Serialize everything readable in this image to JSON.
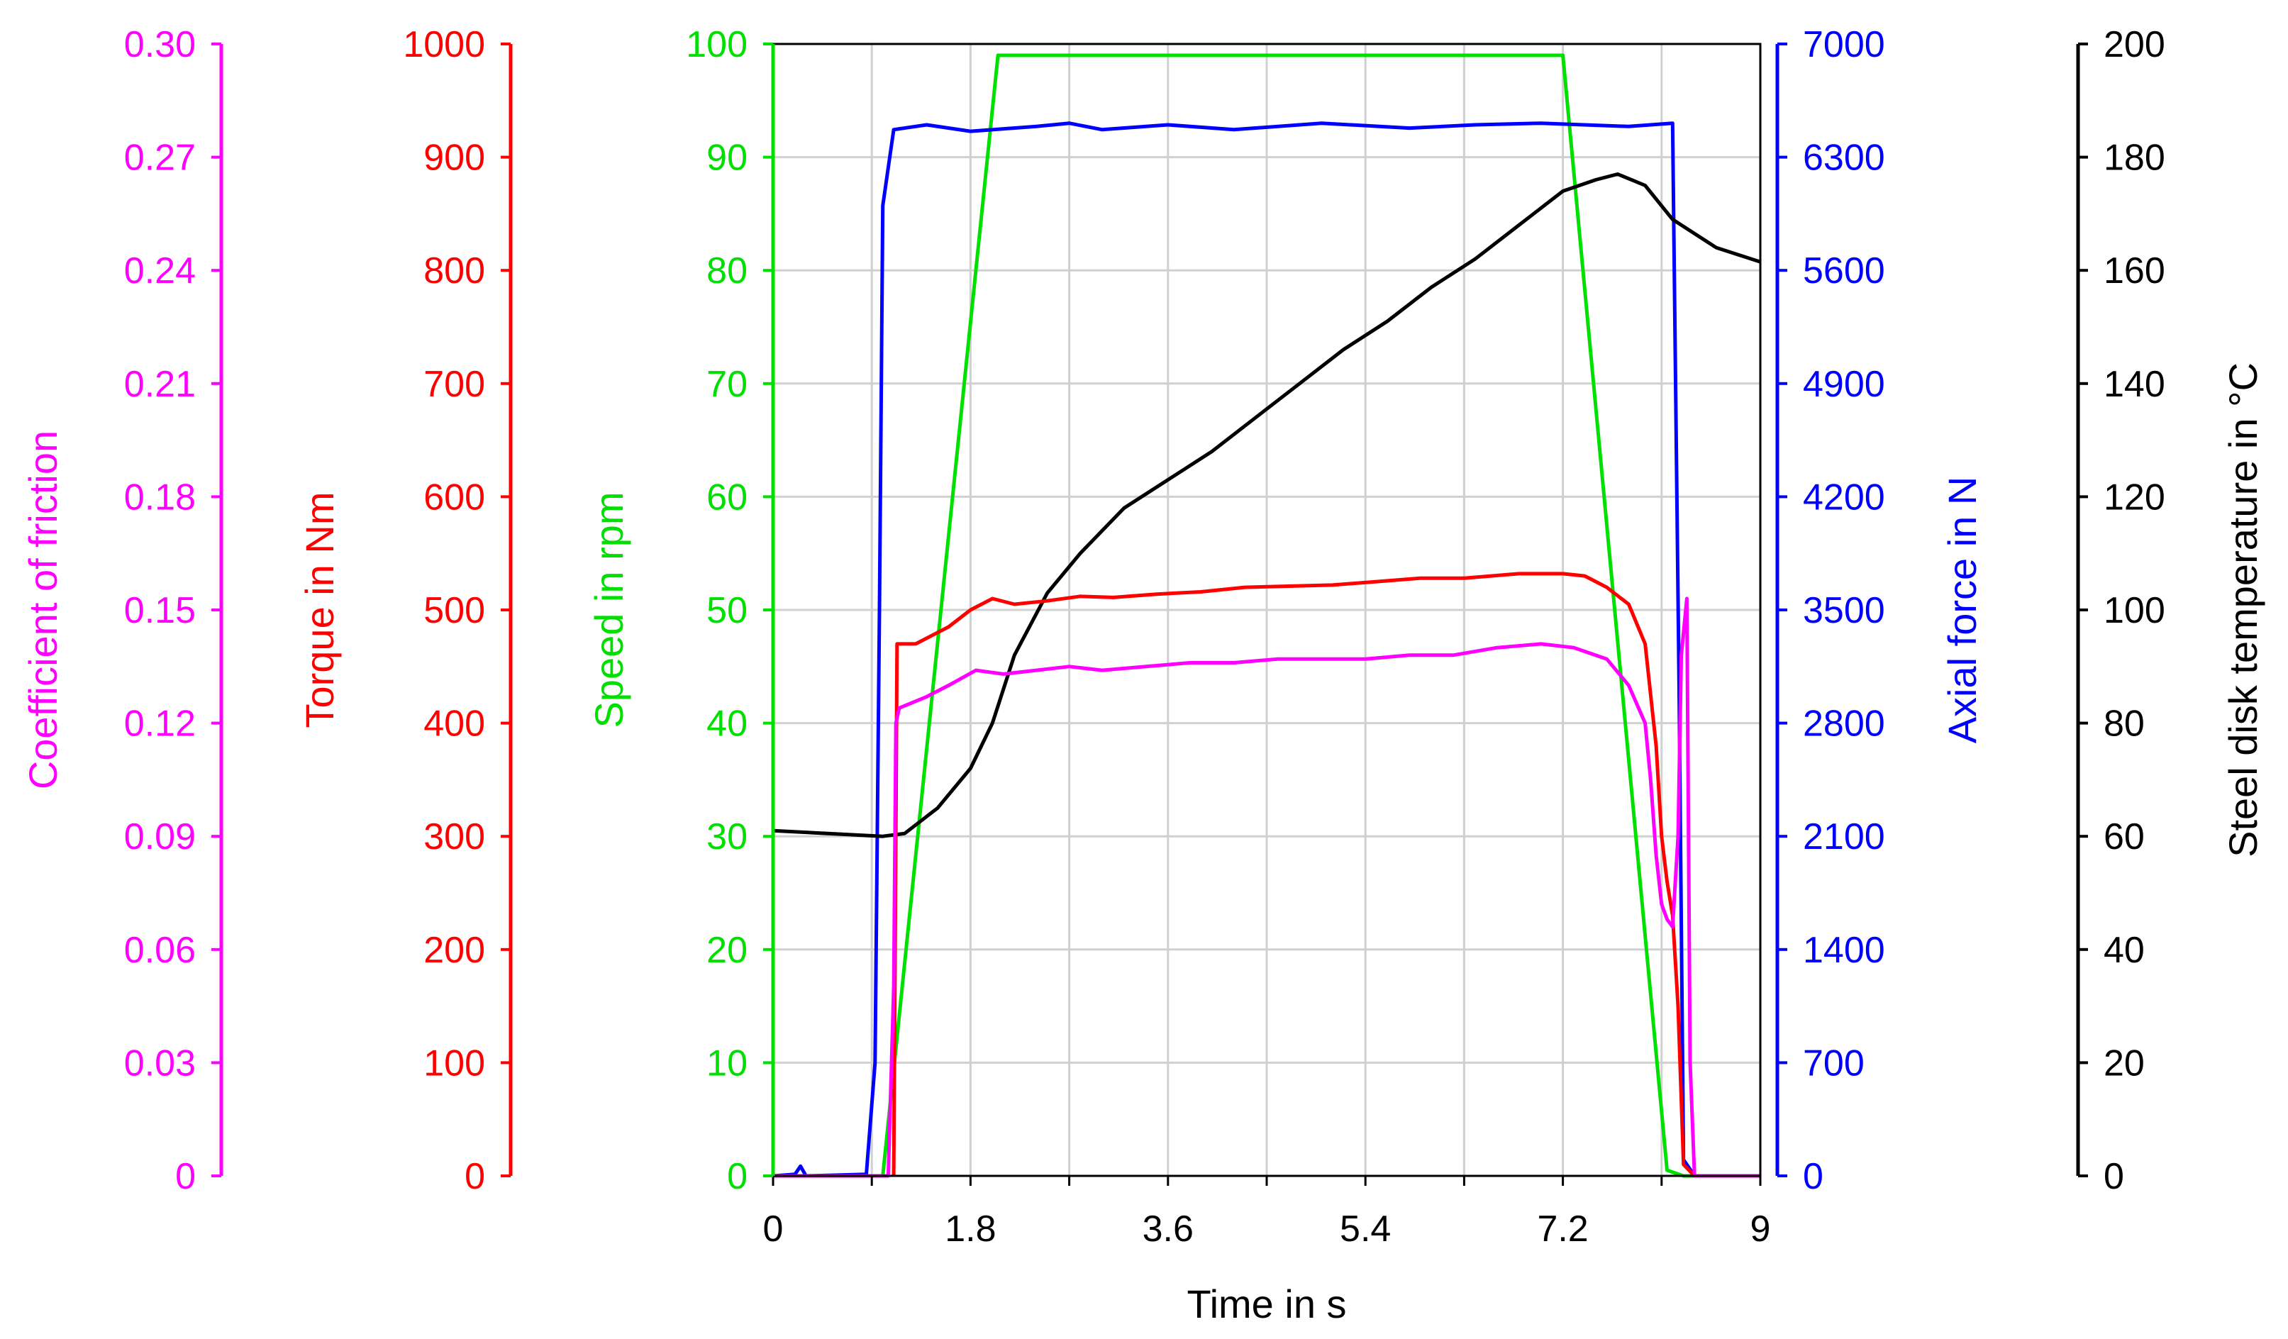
{
  "chart_data": {
    "type": "line",
    "xlabel": "Time in s",
    "xlim": [
      0,
      9
    ],
    "x_ticks": [
      "0",
      "1.8",
      "3.6",
      "5.4",
      "7.2",
      "9"
    ],
    "grid": true,
    "axes": [
      {
        "key": "cof",
        "label": "Coefficient of friction",
        "color": "#ff00ff",
        "ylim": [
          0,
          0.3
        ],
        "ticks": [
          "0",
          "0.03",
          "0.06",
          "0.09",
          "0.12",
          "0.15",
          "0.18",
          "0.21",
          "0.24",
          "0.27",
          "0.30"
        ]
      },
      {
        "key": "torque",
        "label": "Torque in Nm",
        "color": "#ff0000",
        "ylim": [
          0,
          1000
        ],
        "ticks": [
          "0",
          "100",
          "200",
          "300",
          "400",
          "500",
          "600",
          "700",
          "800",
          "900",
          "1000"
        ]
      },
      {
        "key": "speed",
        "label": "Speed in rpm",
        "color": "#00e000",
        "ylim": [
          0,
          100
        ],
        "ticks": [
          "0",
          "10",
          "20",
          "30",
          "40",
          "50",
          "60",
          "70",
          "80",
          "90",
          "100"
        ]
      },
      {
        "key": "force",
        "label": "Axial force in N",
        "color": "#0000ff",
        "ylim": [
          0,
          7000
        ],
        "ticks": [
          "0",
          "700",
          "1400",
          "2100",
          "2800",
          "3500",
          "4200",
          "4900",
          "5600",
          "6300",
          "7000"
        ]
      },
      {
        "key": "temp",
        "label": "Steel disk temperature in °C",
        "color": "#000000",
        "ylim": [
          0,
          200
        ],
        "ticks": [
          "0",
          "20",
          "40",
          "60",
          "80",
          "100",
          "120",
          "140",
          "160",
          "180",
          "200"
        ]
      }
    ],
    "series": [
      {
        "axis": "speed",
        "color": "#00e000",
        "points": [
          [
            0,
            0
          ],
          [
            1.0,
            0
          ],
          [
            2.05,
            99
          ],
          [
            7.2,
            99
          ],
          [
            8.15,
            0.5
          ],
          [
            8.3,
            0
          ],
          [
            9,
            0
          ]
        ]
      },
      {
        "axis": "force",
        "color": "#0000ff",
        "points": [
          [
            0,
            0
          ],
          [
            0.2,
            10
          ],
          [
            0.25,
            60
          ],
          [
            0.3,
            0
          ],
          [
            0.85,
            10
          ],
          [
            0.93,
            700
          ],
          [
            0.97,
            3500
          ],
          [
            1.0,
            6000
          ],
          [
            1.1,
            6470
          ],
          [
            1.4,
            6500
          ],
          [
            1.8,
            6460
          ],
          [
            2.4,
            6490
          ],
          [
            2.7,
            6510
          ],
          [
            3.0,
            6470
          ],
          [
            3.6,
            6500
          ],
          [
            4.2,
            6470
          ],
          [
            5.0,
            6510
          ],
          [
            5.8,
            6480
          ],
          [
            6.4,
            6500
          ],
          [
            7.0,
            6510
          ],
          [
            7.8,
            6490
          ],
          [
            8.2,
            6510
          ],
          [
            8.26,
            3000
          ],
          [
            8.3,
            100
          ],
          [
            8.4,
            0
          ],
          [
            9,
            0
          ]
        ]
      },
      {
        "axis": "temp",
        "color": "#000000",
        "points": [
          [
            0,
            61
          ],
          [
            0.5,
            60.5
          ],
          [
            1.0,
            60
          ],
          [
            1.2,
            60.5
          ],
          [
            1.5,
            65
          ],
          [
            1.8,
            72
          ],
          [
            2.0,
            80
          ],
          [
            2.2,
            92
          ],
          [
            2.5,
            103
          ],
          [
            2.8,
            110
          ],
          [
            3.2,
            118
          ],
          [
            3.6,
            123
          ],
          [
            4.0,
            128
          ],
          [
            4.4,
            134
          ],
          [
            4.8,
            140
          ],
          [
            5.2,
            146
          ],
          [
            5.6,
            151
          ],
          [
            6.0,
            157
          ],
          [
            6.4,
            162
          ],
          [
            6.8,
            168
          ],
          [
            7.2,
            174
          ],
          [
            7.5,
            176
          ],
          [
            7.7,
            177
          ],
          [
            7.95,
            175
          ],
          [
            8.2,
            169
          ],
          [
            8.6,
            164
          ],
          [
            9.0,
            161.5
          ]
        ]
      },
      {
        "axis": "torque",
        "color": "#ff0000",
        "points": [
          [
            1.1,
            0
          ],
          [
            1.13,
            470
          ],
          [
            1.3,
            470
          ],
          [
            1.6,
            485
          ],
          [
            1.8,
            500
          ],
          [
            2.0,
            510
          ],
          [
            2.2,
            505
          ],
          [
            2.5,
            508
          ],
          [
            2.8,
            512
          ],
          [
            3.1,
            511
          ],
          [
            3.5,
            514
          ],
          [
            3.9,
            516
          ],
          [
            4.3,
            520
          ],
          [
            4.7,
            521
          ],
          [
            5.1,
            522
          ],
          [
            5.5,
            525
          ],
          [
            5.9,
            528
          ],
          [
            6.3,
            528
          ],
          [
            6.8,
            532
          ],
          [
            7.2,
            532
          ],
          [
            7.4,
            530
          ],
          [
            7.6,
            520
          ],
          [
            7.8,
            505
          ],
          [
            7.95,
            470
          ],
          [
            8.05,
            380
          ],
          [
            8.1,
            300
          ],
          [
            8.15,
            260
          ],
          [
            8.2,
            230
          ],
          [
            8.25,
            150
          ],
          [
            8.3,
            10
          ],
          [
            8.4,
            0
          ],
          [
            9,
            0
          ]
        ]
      },
      {
        "axis": "cof",
        "color": "#ff00ff",
        "points": [
          [
            0,
            0
          ],
          [
            0.5,
            0
          ],
          [
            1.05,
            0
          ],
          [
            1.1,
            0.05
          ],
          [
            1.12,
            0.12
          ],
          [
            1.15,
            0.124
          ],
          [
            1.4,
            0.127
          ],
          [
            1.6,
            0.13
          ],
          [
            1.85,
            0.134
          ],
          [
            2.1,
            0.133
          ],
          [
            2.4,
            0.134
          ],
          [
            2.7,
            0.135
          ],
          [
            3.0,
            0.134
          ],
          [
            3.4,
            0.135
          ],
          [
            3.8,
            0.136
          ],
          [
            4.2,
            0.136
          ],
          [
            4.6,
            0.137
          ],
          [
            5.0,
            0.137
          ],
          [
            5.4,
            0.137
          ],
          [
            5.8,
            0.138
          ],
          [
            6.2,
            0.138
          ],
          [
            6.6,
            0.14
          ],
          [
            7.0,
            0.141
          ],
          [
            7.3,
            0.14
          ],
          [
            7.6,
            0.137
          ],
          [
            7.8,
            0.13
          ],
          [
            7.95,
            0.12
          ],
          [
            8.0,
            0.105
          ],
          [
            8.05,
            0.085
          ],
          [
            8.1,
            0.072
          ],
          [
            8.15,
            0.068
          ],
          [
            8.2,
            0.066
          ],
          [
            8.25,
            0.09
          ],
          [
            8.28,
            0.138
          ],
          [
            8.33,
            0.153
          ],
          [
            8.36,
            0.03
          ],
          [
            8.4,
            0
          ],
          [
            9,
            0
          ]
        ]
      }
    ]
  }
}
